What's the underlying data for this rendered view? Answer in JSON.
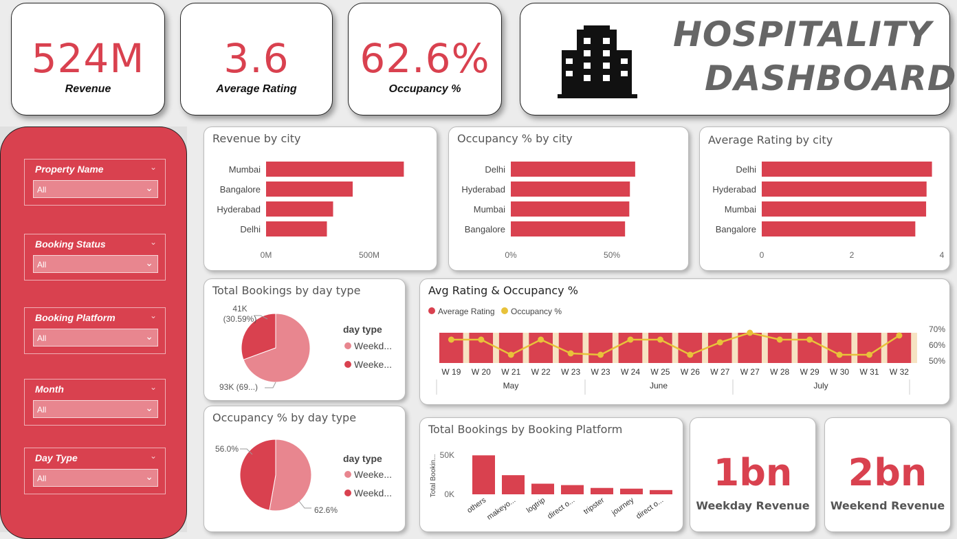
{
  "kpis": {
    "revenue": {
      "value": "524M",
      "label": "Revenue"
    },
    "rating": {
      "value": "3.6",
      "label": "Average Rating"
    },
    "occupancy": {
      "value": "62.6%",
      "label": "Occupancy %"
    }
  },
  "header": {
    "title_line1": "HOSPITALITY",
    "title_line2": "DASHBOARD",
    "icon": "building-icon"
  },
  "filters": [
    {
      "label": "Property Name",
      "value": "All"
    },
    {
      "label": "Booking Status",
      "value": "All"
    },
    {
      "label": "Booking Platform",
      "value": "All"
    },
    {
      "label": "Month",
      "value": "All"
    },
    {
      "label": "Day Type",
      "value": "All"
    }
  ],
  "bottom_kpis": {
    "weekday": {
      "value": "1bn",
      "label": "Weekday Revenue"
    },
    "weekend": {
      "value": "2bn",
      "label": "Weekend Revenue"
    }
  },
  "colors": {
    "accent": "#d9414f",
    "light": "#e8868f",
    "yellow": "#e8c23a"
  },
  "chart_data": [
    {
      "id": "revenue_by_city",
      "type": "bar",
      "orientation": "horizontal",
      "title": "Revenue by city",
      "categories": [
        "Mumbai",
        "Bangalore",
        "Hyderabad",
        "Delhi"
      ],
      "values": [
        668,
        420,
        325,
        295
      ],
      "xlim": [
        0,
        800
      ],
      "ticks": [
        {
          "v": 0,
          "label": "0M"
        },
        {
          "v": 500,
          "label": "500M"
        }
      ]
    },
    {
      "id": "occupancy_by_city",
      "type": "bar",
      "orientation": "horizontal",
      "title": "Occupancy % by city",
      "categories": [
        "Delhi",
        "Hyderabad",
        "Mumbai",
        "Bangalore"
      ],
      "values": [
        61.5,
        58.9,
        58.6,
        56.5
      ],
      "xlim": [
        0,
        85
      ],
      "ticks": [
        {
          "v": 0,
          "label": "0%"
        },
        {
          "v": 50,
          "label": "50%"
        }
      ]
    },
    {
      "id": "rating_by_city",
      "type": "bar",
      "orientation": "horizontal",
      "title": "Average Rating by city",
      "categories": [
        "Delhi",
        "Hyderabad",
        "Mumbai",
        "Bangalore"
      ],
      "values": [
        3.78,
        3.66,
        3.65,
        3.41
      ],
      "xlim": [
        0,
        4
      ],
      "ticks": [
        {
          "v": 0,
          "label": "0"
        },
        {
          "v": 2,
          "label": "2"
        },
        {
          "v": 4,
          "label": "4"
        }
      ]
    },
    {
      "id": "bookings_by_daytype",
      "type": "pie",
      "title": "Total Bookings by day type",
      "legend_title": "day type",
      "slices": [
        {
          "name": "Weekd...",
          "value": 69.41,
          "label": "93K (69...)",
          "color": "#e8868f"
        },
        {
          "name": "Weeke...",
          "value": 30.59,
          "label": "41K\n(30.59%)",
          "color": "#d9414f"
        }
      ]
    },
    {
      "id": "occupancy_by_daytype",
      "type": "pie",
      "title": "Occupancy % by day type",
      "legend_title": "day type",
      "slices": [
        {
          "name": "Weeke...",
          "value": 52.8,
          "label": "62.6%",
          "color": "#e8868f"
        },
        {
          "name": "Weekd...",
          "value": 47.2,
          "label": "56.0%",
          "color": "#d9414f"
        }
      ]
    },
    {
      "id": "rating_occupancy_weekly",
      "type": "bar",
      "combo": "line",
      "title": "Avg Rating & Occupancy %",
      "legend": [
        "Average Rating",
        "Occupancy %"
      ],
      "categories": [
        "W 19",
        "W 20",
        "W 21",
        "W 22",
        "W 23",
        "W 23",
        "W 24",
        "W 25",
        "W 26",
        "W 27",
        "W 27",
        "W 28",
        "W 29",
        "W 30",
        "W 31",
        "W 32"
      ],
      "months": [
        "May",
        "June",
        "July"
      ],
      "bar_values": [
        3.6,
        3.6,
        3.6,
        3.6,
        3.6,
        3.6,
        3.6,
        3.6,
        3.6,
        3.6,
        3.6,
        3.6,
        3.6,
        3.6,
        3.6,
        3.6
      ],
      "line_values": [
        62,
        62,
        51,
        62,
        52,
        51,
        62,
        62,
        51,
        60,
        67,
        62,
        62,
        51,
        51,
        65
      ],
      "y2_ticks": [
        "70%",
        "60%",
        "50%"
      ],
      "y2_lim": [
        45,
        72
      ]
    },
    {
      "id": "bookings_by_platform",
      "type": "bar",
      "title": "Total Bookings by Booking Platform",
      "ylabel": "Total Bookin...",
      "categories": [
        "others",
        "makeyo...",
        "logtrip",
        "direct o...",
        "tripster",
        "journey",
        "direct o..."
      ],
      "values": [
        55,
        27,
        15,
        13,
        9,
        8,
        6
      ],
      "ylim": [
        0,
        65
      ],
      "ticks": [
        "50K",
        "0K"
      ]
    }
  ]
}
